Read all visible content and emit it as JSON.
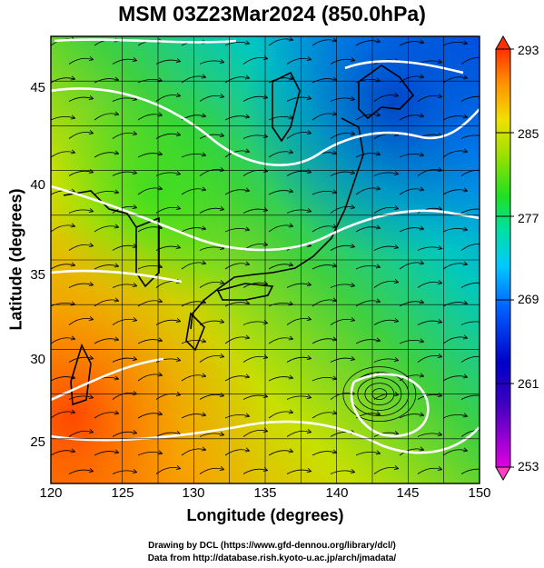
{
  "title": "MSM 03Z23Mar2024 (850.0hPa)",
  "axes": {
    "xlabel": "Longitude (degrees)",
    "ylabel": "Latitude  (degrees)",
    "xticks": [
      "120",
      "125",
      "130",
      "135",
      "140",
      "145",
      "150"
    ],
    "yticks": [
      "45",
      "40",
      "35",
      "30",
      "25"
    ]
  },
  "colorbar": {
    "ticks": [
      "293",
      "285",
      "277",
      "269",
      "261",
      "253"
    ],
    "min": 253,
    "max": 293,
    "colors": [
      "#e000e0",
      "#0000c8",
      "#0060ff",
      "#00c8ff",
      "#00e0a0",
      "#20e020",
      "#a0e000",
      "#f0e000",
      "#ff9000",
      "#ff3000"
    ]
  },
  "credits": {
    "line1": "Drawing by DCL (https://www.gfd-dennou.org/library/dcl/)",
    "line2": "Data from http://database.rish.kyoto-u.ac.jp/arch/jmadata/"
  },
  "chart_data": {
    "type": "heatmap",
    "title": "MSM 03Z23Mar2024 (850.0hPa)",
    "xlabel": "Longitude (degrees)",
    "ylabel": "Latitude  (degrees)",
    "xlim": [
      120,
      150
    ],
    "ylim": [
      22.5,
      47.5
    ],
    "color_range": [
      253,
      293
    ],
    "colorbar_ticks": [
      293,
      285,
      277,
      269,
      261,
      253
    ],
    "overlays": [
      "streamlines",
      "coastlines",
      "white isotherm contours"
    ],
    "grid": true
  }
}
